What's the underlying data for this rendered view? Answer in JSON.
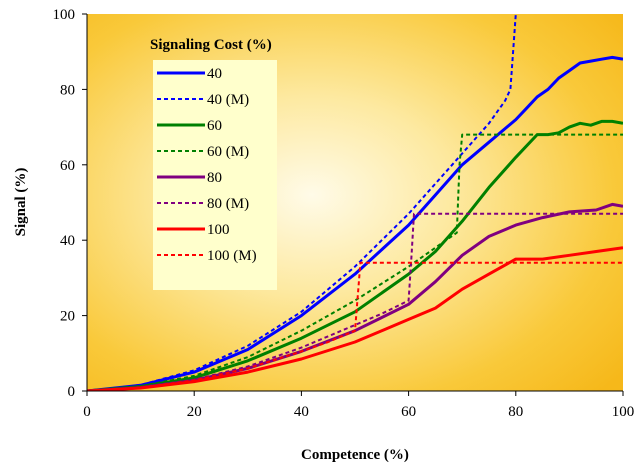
{
  "chart_data": {
    "type": "line",
    "xlabel": "Competence (%)",
    "ylabel": "Signal (%)",
    "xlim": [
      0,
      100
    ],
    "ylim": [
      0,
      100
    ],
    "x_ticks": [
      0,
      20,
      40,
      60,
      80,
      100
    ],
    "y_ticks": [
      0,
      20,
      40,
      60,
      80,
      100
    ],
    "grid": false,
    "legend": {
      "title": "Signaling Cost (%)",
      "placement": "top-left"
    },
    "series": [
      {
        "name": "40",
        "color": "#0000ff",
        "dash": "solid",
        "x": [
          0,
          10,
          20,
          30,
          40,
          50,
          60,
          65,
          70,
          75,
          80,
          82,
          84,
          86,
          88,
          90,
          92,
          94,
          96,
          98,
          100
        ],
        "y": [
          0,
          1.5,
          5,
          11,
          20,
          31,
          44,
          52,
          60,
          66,
          72,
          75,
          78,
          80,
          83,
          85,
          87,
          87.5,
          88,
          88.5,
          88
        ]
      },
      {
        "name": "40 (M)",
        "color": "#0000ff",
        "dash": "dashed",
        "x": [
          0,
          10,
          20,
          30,
          40,
          50,
          60,
          70,
          75,
          78,
          79,
          79.5,
          80
        ],
        "y": [
          0,
          1.6,
          5.5,
          12,
          21,
          33,
          47,
          63,
          71,
          77,
          80,
          90,
          100
        ]
      },
      {
        "name": "60",
        "color": "#008000",
        "dash": "solid",
        "x": [
          0,
          10,
          20,
          30,
          40,
          50,
          60,
          65,
          70,
          75,
          80,
          84,
          86,
          88,
          90,
          92,
          94,
          96,
          98,
          100
        ],
        "y": [
          0,
          1.2,
          3.5,
          8,
          14,
          21,
          31,
          37,
          45,
          54,
          62,
          68,
          68,
          68.5,
          70,
          71,
          70.5,
          71.5,
          71.5,
          71
        ]
      },
      {
        "name": "60 (M)",
        "color": "#008000",
        "dash": "dashed",
        "x": [
          0,
          10,
          20,
          30,
          40,
          50,
          60,
          65,
          69,
          69.5,
          70,
          75,
          80,
          85,
          90,
          95,
          100
        ],
        "y": [
          0,
          1.3,
          4,
          9,
          16,
          24,
          33,
          38,
          42,
          60,
          68,
          68,
          68,
          68,
          68,
          68,
          68
        ]
      },
      {
        "name": "80",
        "color": "#800080",
        "dash": "solid",
        "x": [
          0,
          10,
          20,
          30,
          40,
          50,
          55,
          60,
          65,
          70,
          75,
          80,
          85,
          90,
          95,
          98,
          100
        ],
        "y": [
          0,
          0.9,
          2.8,
          6,
          10.5,
          16,
          19.5,
          23,
          29,
          36,
          41,
          44,
          46,
          47.5,
          48,
          49.5,
          49
        ]
      },
      {
        "name": "80 (M)",
        "color": "#800080",
        "dash": "dashed",
        "x": [
          0,
          10,
          20,
          30,
          40,
          50,
          55,
          60,
          60.5,
          61,
          65,
          70,
          75,
          80,
          85,
          90,
          95,
          100
        ],
        "y": [
          0,
          1,
          3,
          6.5,
          11.5,
          17.5,
          20.5,
          24,
          35,
          47,
          47,
          47,
          47,
          47,
          47,
          47,
          47,
          47
        ]
      },
      {
        "name": "100",
        "color": "#ff0000",
        "dash": "solid",
        "x": [
          0,
          10,
          20,
          30,
          40,
          50,
          55,
          60,
          65,
          70,
          75,
          80,
          85,
          90,
          95,
          100
        ],
        "y": [
          0,
          0.8,
          2.5,
          5,
          8.5,
          13,
          16,
          19,
          22,
          27,
          31,
          35,
          35,
          36,
          37,
          38
        ]
      },
      {
        "name": "100 (M)",
        "color": "#ff0000",
        "dash": "dashed",
        "x": [
          0,
          10,
          20,
          30,
          40,
          45,
          50,
          50.5,
          51,
          55,
          60,
          65,
          70,
          75,
          80,
          85,
          90,
          95,
          100
        ],
        "y": [
          0,
          0.9,
          2.8,
          6,
          10.5,
          13,
          16,
          25,
          34,
          34,
          34,
          34,
          34,
          34,
          34,
          34,
          34,
          34,
          34
        ]
      }
    ]
  }
}
